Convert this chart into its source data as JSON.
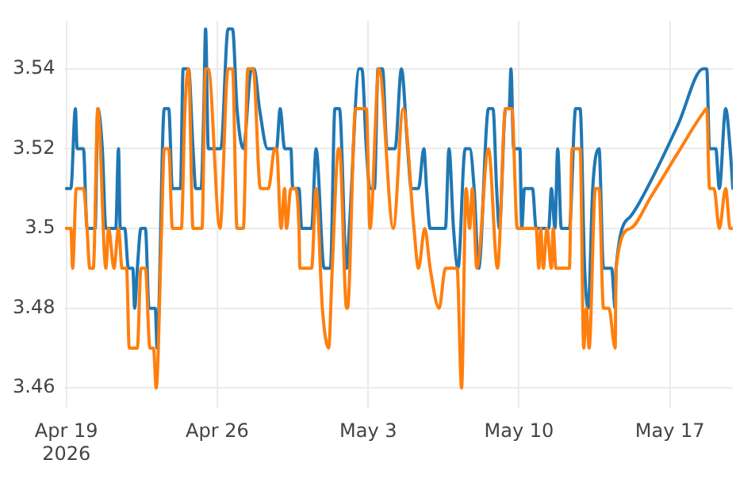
{
  "chart_data": {
    "type": "line",
    "grid": true,
    "legend": false,
    "marker": "none",
    "xlim": [
      "2026-04-18T22:00",
      "2026-05-19T22:00"
    ],
    "xticks": [
      {
        "value": "2026-04-19",
        "label": "Apr 19\n2026"
      },
      {
        "value": "2026-04-26",
        "label": "Apr 26"
      },
      {
        "value": "2026-05-03",
        "label": "May 3"
      },
      {
        "value": "2026-05-10",
        "label": "May 10"
      },
      {
        "value": "2026-05-17",
        "label": "May 17"
      }
    ],
    "ylim": [
      3.455,
      3.552
    ],
    "yticks": [
      3.46,
      3.48,
      3.5,
      3.52,
      3.54
    ],
    "series": [
      {
        "color": "#1f77b4",
        "x": [
          "2026-04-19T00:00",
          "2026-04-19T05:00",
          "2026-04-19T10:00",
          "2026-04-19T12:00",
          "2026-04-19T19:00",
          "2026-04-19T23:00",
          "2026-04-20T08:00",
          "2026-04-20T11:00",
          "2026-04-20T16:00",
          "2026-04-20T20:00",
          "2026-04-21T07:00",
          "2026-04-21T10:00",
          "2026-04-21T12:00",
          "2026-04-21T17:00",
          "2026-04-21T21:00",
          "2026-04-22T02:00",
          "2026-04-22T04:00",
          "2026-04-22T07:00",
          "2026-04-22T11:00",
          "2026-04-22T16:00",
          "2026-04-22T20:00",
          "2026-04-23T03:00",
          "2026-04-23T05:00",
          "2026-04-23T13:00",
          "2026-04-23T18:00",
          "2026-04-23T22:00",
          "2026-04-24T07:00",
          "2026-04-24T10:00",
          "2026-04-24T16:00",
          "2026-04-24T21:00",
          "2026-04-25T00:00",
          "2026-04-25T06:00",
          "2026-04-25T09:00",
          "2026-04-25T11:00",
          "2026-04-25T14:00",
          "2026-04-26T04:00",
          "2026-04-26T12:00",
          "2026-04-26T17:00",
          "2026-04-26T22:00",
          "2026-04-27T05:00",
          "2026-04-27T14:00",
          "2026-04-27T17:00",
          "2026-04-27T23:00",
          "2026-04-28T08:00",
          "2026-04-28T18:00",
          "2026-04-28T22:00",
          "2026-04-29T03:00",
          "2026-04-29T10:00",
          "2026-04-29T12:00",
          "2026-04-29T19:00",
          "2026-04-29T22:00",
          "2026-04-30T09:00",
          "2026-04-30T14:00",
          "2026-04-30T23:00",
          "2026-05-01T06:00",
          "2026-05-01T11:00",
          "2026-05-01T16:00",
          "2026-05-02T00:00",
          "2026-05-02T03:00",
          "2026-05-02T14:00",
          "2026-05-02T17:00",
          "2026-05-02T22:00",
          "2026-05-03T02:00",
          "2026-05-03T07:00",
          "2026-05-03T11:00",
          "2026-05-03T16:00",
          "2026-05-03T21:00",
          "2026-05-04T06:00",
          "2026-05-04T13:00",
          "2026-05-04T20:00",
          "2026-05-05T00:00",
          "2026-05-05T08:00",
          "2026-05-05T14:00",
          "2026-05-05T17:00",
          "2026-05-05T21:00",
          "2026-05-06T14:00",
          "2026-05-06T18:00",
          "2026-05-06T23:00",
          "2026-05-07T04:00",
          "2026-05-07T12:00",
          "2026-05-07T17:00",
          "2026-05-07T22:00",
          "2026-05-08T03:00",
          "2026-05-08T14:00",
          "2026-05-08T19:00",
          "2026-05-08T23:00",
          "2026-05-09T02:00",
          "2026-05-09T09:00",
          "2026-05-09T13:00",
          "2026-05-09T15:00",
          "2026-05-09T18:00",
          "2026-05-10T01:00",
          "2026-05-10T03:00",
          "2026-05-10T06:00",
          "2026-05-10T15:00",
          "2026-05-10T19:00",
          "2026-05-11T09:00",
          "2026-05-11T12:00",
          "2026-05-11T16:00",
          "2026-05-11T19:00",
          "2026-05-11T23:00",
          "2026-05-12T08:00",
          "2026-05-12T15:00",
          "2026-05-12T20:00",
          "2026-05-13T01:00",
          "2026-05-13T05:00",
          "2026-05-13T10:00",
          "2026-05-13T17:00",
          "2026-05-13T22:00",
          "2026-05-14T07:00",
          "2026-05-14T11:00",
          "2026-05-14T12:00",
          "2026-05-15T04:00",
          "2026-05-16T03:00",
          "2026-05-17T09:00",
          "2026-05-18T13:00",
          "2026-05-18T17:00",
          "2026-05-18T20:00",
          "2026-05-19T03:00",
          "2026-05-19T07:00",
          "2026-05-19T14:00",
          "2026-05-19T19:00",
          "2026-05-19T22:00"
        ],
        "values": [
          3.51,
          3.51,
          3.53,
          3.52,
          3.52,
          3.5,
          3.5,
          3.53,
          3.52,
          3.5,
          3.5,
          3.52,
          3.5,
          3.5,
          3.49,
          3.49,
          3.48,
          3.49,
          3.5,
          3.5,
          3.48,
          3.48,
          3.47,
          3.53,
          3.53,
          3.51,
          3.51,
          3.54,
          3.54,
          3.52,
          3.51,
          3.51,
          3.53,
          3.55,
          3.52,
          3.52,
          3.55,
          3.55,
          3.53,
          3.52,
          3.54,
          3.54,
          3.53,
          3.52,
          3.52,
          3.53,
          3.52,
          3.52,
          3.51,
          3.51,
          3.5,
          3.5,
          3.52,
          3.49,
          3.49,
          3.53,
          3.53,
          3.49,
          3.5,
          3.54,
          3.54,
          3.52,
          3.51,
          3.51,
          3.54,
          3.54,
          3.52,
          3.52,
          3.54,
          3.52,
          3.51,
          3.51,
          3.52,
          3.51,
          3.5,
          3.5,
          3.52,
          3.5,
          3.49,
          3.52,
          3.52,
          3.51,
          3.49,
          3.53,
          3.53,
          3.51,
          3.5,
          3.53,
          3.53,
          3.54,
          3.52,
          3.52,
          3.5,
          3.51,
          3.51,
          3.5,
          3.5,
          3.51,
          3.5,
          3.52,
          3.5,
          3.5,
          3.53,
          3.53,
          3.49,
          3.48,
          3.51,
          3.52,
          3.49,
          3.49,
          3.48,
          3.49,
          3.503,
          3.512,
          3.526,
          3.54,
          3.54,
          3.52,
          3.52,
          3.51,
          3.53,
          3.52,
          3.51
        ]
      },
      {
        "color": "#ff7f0e",
        "x": [
          "2026-04-19T00:00",
          "2026-04-19T05:00",
          "2026-04-19T07:00",
          "2026-04-19T11:00",
          "2026-04-19T19:00",
          "2026-04-19T23:00",
          "2026-04-20T02:00",
          "2026-04-20T06:00",
          "2026-04-20T11:00",
          "2026-04-20T20:00",
          "2026-04-20T23:00",
          "2026-04-21T05:00",
          "2026-04-21T10:00",
          "2026-04-21T14:00",
          "2026-04-21T19:00",
          "2026-04-21T22:00",
          "2026-04-22T07:00",
          "2026-04-22T11:00",
          "2026-04-22T16:00",
          "2026-04-22T21:00",
          "2026-04-23T01:00",
          "2026-04-23T04:00",
          "2026-04-23T10:00",
          "2026-04-23T13:00",
          "2026-04-23T18:00",
          "2026-04-23T22:00",
          "2026-04-24T08:00",
          "2026-04-24T12:00",
          "2026-04-24T16:00",
          "2026-04-24T21:00",
          "2026-04-25T07:00",
          "2026-04-25T11:00",
          "2026-04-25T14:00",
          "2026-04-26T03:00",
          "2026-04-26T12:00",
          "2026-04-26T17:00",
          "2026-04-26T22:00",
          "2026-04-27T05:00",
          "2026-04-27T10:00",
          "2026-04-27T16:00",
          "2026-04-28T00:00",
          "2026-04-28T09:00",
          "2026-04-28T16:00",
          "2026-04-28T18:00",
          "2026-04-28T23:00",
          "2026-04-29T03:00",
          "2026-04-29T05:00",
          "2026-04-29T10:00",
          "2026-04-29T15:00",
          "2026-04-29T19:00",
          "2026-04-29T20:00",
          "2026-04-30T09:00",
          "2026-04-30T14:00",
          "2026-04-30T21:00",
          "2026-05-01T04:00",
          "2026-05-01T08:00",
          "2026-05-01T15:00",
          "2026-05-01T16:00",
          "2026-05-02T00:00",
          "2026-05-02T01:00",
          "2026-05-02T10:00",
          "2026-05-02T22:00",
          "2026-05-03T02:00",
          "2026-05-03T12:00",
          "2026-05-04T04:00",
          "2026-05-04T15:00",
          "2026-05-05T03:00",
          "2026-05-05T08:00",
          "2026-05-05T15:00",
          "2026-05-05T21:00",
          "2026-05-06T07:00",
          "2026-05-06T14:00",
          "2026-05-07T03:00",
          "2026-05-07T08:00",
          "2026-05-07T13:00",
          "2026-05-07T17:00",
          "2026-05-07T20:00",
          "2026-05-08T01:00",
          "2026-05-08T14:00",
          "2026-05-09T00:00",
          "2026-05-09T09:00",
          "2026-05-09T16:00",
          "2026-05-09T22:00",
          "2026-05-10T19:00",
          "2026-05-10T22:00",
          "2026-05-11T00:00",
          "2026-05-11T03:00",
          "2026-05-11T07:00",
          "2026-05-11T12:00",
          "2026-05-11T14:00",
          "2026-05-11T17:00",
          "2026-05-12T08:00",
          "2026-05-12T11:00",
          "2026-05-12T20:00",
          "2026-05-13T00:00",
          "2026-05-13T03:00",
          "2026-05-13T06:00",
          "2026-05-13T13:00",
          "2026-05-13T17:00",
          "2026-05-13T22:00",
          "2026-05-14T04:00",
          "2026-05-14T11:00",
          "2026-05-14T12:00",
          "2026-05-15T04:00",
          "2026-05-16T03:00",
          "2026-05-17T09:00",
          "2026-05-18T13:00",
          "2026-05-18T17:00",
          "2026-05-18T20:00",
          "2026-05-19T01:00",
          "2026-05-19T07:00",
          "2026-05-19T14:00",
          "2026-05-19T19:00",
          "2026-05-19T22:00"
        ],
        "values": [
          3.5,
          3.5,
          3.49,
          3.51,
          3.51,
          3.5,
          3.49,
          3.49,
          3.53,
          3.49,
          3.5,
          3.49,
          3.5,
          3.49,
          3.49,
          3.47,
          3.47,
          3.49,
          3.49,
          3.47,
          3.47,
          3.46,
          3.5,
          3.52,
          3.52,
          3.5,
          3.5,
          3.53,
          3.54,
          3.5,
          3.5,
          3.54,
          3.54,
          3.5,
          3.54,
          3.54,
          3.5,
          3.5,
          3.54,
          3.54,
          3.51,
          3.51,
          3.52,
          3.52,
          3.5,
          3.51,
          3.5,
          3.51,
          3.51,
          3.5,
          3.49,
          3.49,
          3.51,
          3.48,
          3.47,
          3.49,
          3.52,
          3.52,
          3.48,
          3.48,
          3.53,
          3.53,
          3.5,
          3.54,
          3.5,
          3.53,
          3.5,
          3.49,
          3.5,
          3.49,
          3.48,
          3.49,
          3.49,
          3.46,
          3.51,
          3.5,
          3.51,
          3.49,
          3.52,
          3.49,
          3.53,
          3.53,
          3.5,
          3.5,
          3.49,
          3.5,
          3.49,
          3.5,
          3.49,
          3.5,
          3.49,
          3.49,
          3.52,
          3.52,
          3.47,
          3.48,
          3.47,
          3.51,
          3.51,
          3.48,
          3.48,
          3.47,
          3.49,
          3.5,
          3.508,
          3.519,
          3.529,
          3.53,
          3.51,
          3.51,
          3.5,
          3.51,
          3.5,
          3.5
        ]
      }
    ]
  }
}
